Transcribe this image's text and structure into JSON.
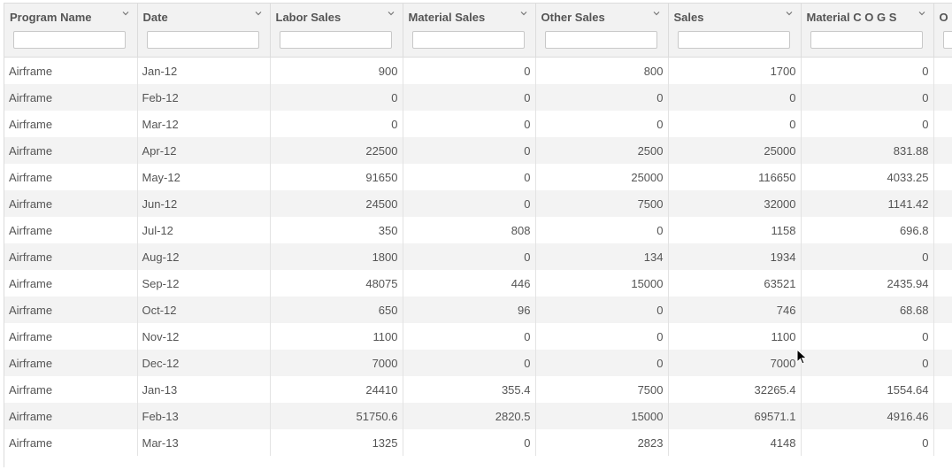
{
  "columns": [
    {
      "label": "Program Name",
      "key": "program"
    },
    {
      "label": "Date",
      "key": "date"
    },
    {
      "label": "Labor Sales",
      "key": "labor"
    },
    {
      "label": "Material Sales",
      "key": "material"
    },
    {
      "label": "Other Sales",
      "key": "other"
    },
    {
      "label": "Sales",
      "key": "sales"
    },
    {
      "label": "Material C O G S",
      "key": "mcogs"
    },
    {
      "label": "O",
      "key": "o"
    }
  ],
  "rows": [
    {
      "program": "Airframe",
      "date": "Jan-12",
      "labor": "900",
      "material": "0",
      "other": "800",
      "sales": "1700",
      "mcogs": "0"
    },
    {
      "program": "Airframe",
      "date": "Feb-12",
      "labor": "0",
      "material": "0",
      "other": "0",
      "sales": "0",
      "mcogs": "0"
    },
    {
      "program": "Airframe",
      "date": "Mar-12",
      "labor": "0",
      "material": "0",
      "other": "0",
      "sales": "0",
      "mcogs": "0"
    },
    {
      "program": "Airframe",
      "date": "Apr-12",
      "labor": "22500",
      "material": "0",
      "other": "2500",
      "sales": "25000",
      "mcogs": "831.88"
    },
    {
      "program": "Airframe",
      "date": "May-12",
      "labor": "91650",
      "material": "0",
      "other": "25000",
      "sales": "116650",
      "mcogs": "4033.25"
    },
    {
      "program": "Airframe",
      "date": "Jun-12",
      "labor": "24500",
      "material": "0",
      "other": "7500",
      "sales": "32000",
      "mcogs": "1141.42"
    },
    {
      "program": "Airframe",
      "date": "Jul-12",
      "labor": "350",
      "material": "808",
      "other": "0",
      "sales": "1158",
      "mcogs": "696.8"
    },
    {
      "program": "Airframe",
      "date": "Aug-12",
      "labor": "1800",
      "material": "0",
      "other": "134",
      "sales": "1934",
      "mcogs": "0"
    },
    {
      "program": "Airframe",
      "date": "Sep-12",
      "labor": "48075",
      "material": "446",
      "other": "15000",
      "sales": "63521",
      "mcogs": "2435.94"
    },
    {
      "program": "Airframe",
      "date": "Oct-12",
      "labor": "650",
      "material": "96",
      "other": "0",
      "sales": "746",
      "mcogs": "68.68"
    },
    {
      "program": "Airframe",
      "date": "Nov-12",
      "labor": "1100",
      "material": "0",
      "other": "0",
      "sales": "1100",
      "mcogs": "0"
    },
    {
      "program": "Airframe",
      "date": "Dec-12",
      "labor": "7000",
      "material": "0",
      "other": "0",
      "sales": "7000",
      "mcogs": "0"
    },
    {
      "program": "Airframe",
      "date": "Jan-13",
      "labor": "24410",
      "material": "355.4",
      "other": "7500",
      "sales": "32265.4",
      "mcogs": "1554.64"
    },
    {
      "program": "Airframe",
      "date": "Feb-13",
      "labor": "51750.6",
      "material": "2820.5",
      "other": "15000",
      "sales": "69571.1",
      "mcogs": "4916.46"
    },
    {
      "program": "Airframe",
      "date": "Mar-13",
      "labor": "1325",
      "material": "0",
      "other": "2823",
      "sales": "4148",
      "mcogs": "0"
    }
  ],
  "icons": {
    "column_menu": "chevron-down-icon",
    "pointer": "mouse-cursor-icon"
  }
}
